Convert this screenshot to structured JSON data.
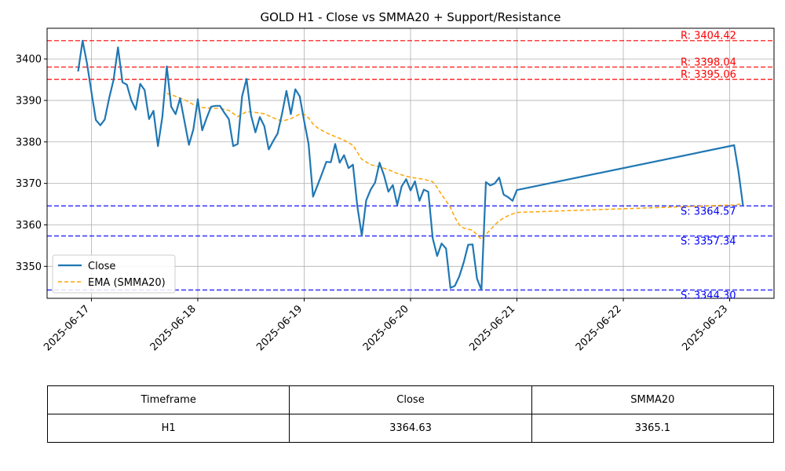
{
  "chart_data": {
    "type": "line",
    "title": "GOLD H1 - Close vs SMMA20 + Support/Resistance",
    "xlabel": "",
    "ylabel": "",
    "x_range": [
      "2025-06-16T14:00",
      "2025-06-23T10:00"
    ],
    "ylim": [
      3342.3,
      3407.4
    ],
    "grid": true,
    "legend_position": "lower-left",
    "x_ticks": [
      "2025-06-17",
      "2025-06-18",
      "2025-06-19",
      "2025-06-20",
      "2025-06-21",
      "2025-06-22",
      "2025-06-23"
    ],
    "y_ticks": [
      3350,
      3360,
      3370,
      3380,
      3390,
      3400
    ],
    "series": [
      {
        "name": "Close",
        "style": "solid",
        "color": "#1f77b4",
        "points": [
          [
            "2025-06-16T21:00",
            3397
          ],
          [
            "2025-06-16T22:00",
            3404.4
          ],
          [
            "2025-06-16T23:00",
            3399
          ],
          [
            "2025-06-17T00:00",
            3392
          ],
          [
            "2025-06-17T01:00",
            3385.3
          ],
          [
            "2025-06-17T02:00",
            3384
          ],
          [
            "2025-06-17T03:00",
            3385.4
          ],
          [
            "2025-06-17T04:00",
            3390.5
          ],
          [
            "2025-06-17T05:00",
            3395
          ],
          [
            "2025-06-17T06:00",
            3402.8
          ],
          [
            "2025-06-17T07:00",
            3394.4
          ],
          [
            "2025-06-17T08:00",
            3393.8
          ],
          [
            "2025-06-17T09:00",
            3390
          ],
          [
            "2025-06-17T10:00",
            3387.8
          ],
          [
            "2025-06-17T11:00",
            3394
          ],
          [
            "2025-06-17T12:00",
            3392.5
          ],
          [
            "2025-06-17T13:00",
            3385.5
          ],
          [
            "2025-06-17T14:00",
            3387.5
          ],
          [
            "2025-06-17T15:00",
            3379
          ],
          [
            "2025-06-17T16:00",
            3386
          ],
          [
            "2025-06-17T17:00",
            3398.2
          ],
          [
            "2025-06-17T18:00",
            3388.5
          ],
          [
            "2025-06-17T19:00",
            3386.7
          ],
          [
            "2025-06-17T20:00",
            3390.5
          ],
          [
            "2025-06-17T21:00",
            3385
          ],
          [
            "2025-06-17T22:00",
            3379.3
          ],
          [
            "2025-06-17T23:00",
            3383
          ],
          [
            "2025-06-18T00:00",
            3390.3
          ],
          [
            "2025-06-18T01:00",
            3382.8
          ],
          [
            "2025-06-18T02:00",
            3385.8
          ],
          [
            "2025-06-18T03:00",
            3388.5
          ],
          [
            "2025-06-18T04:00",
            3388.7
          ],
          [
            "2025-06-18T05:00",
            3388.7
          ],
          [
            "2025-06-18T06:00",
            3387
          ],
          [
            "2025-06-18T07:00",
            3385.5
          ],
          [
            "2025-06-18T08:00",
            3379
          ],
          [
            "2025-06-18T09:00",
            3379.5
          ],
          [
            "2025-06-18T10:00",
            3391
          ],
          [
            "2025-06-18T11:00",
            3395.2
          ],
          [
            "2025-06-18T12:00",
            3386.5
          ],
          [
            "2025-06-18T13:00",
            3382.3
          ],
          [
            "2025-06-18T14:00",
            3386
          ],
          [
            "2025-06-18T15:00",
            3383.8
          ],
          [
            "2025-06-18T16:00",
            3378.2
          ],
          [
            "2025-06-18T17:00",
            3380.2
          ],
          [
            "2025-06-18T18:00",
            3382
          ],
          [
            "2025-06-18T19:00",
            3386.8
          ],
          [
            "2025-06-18T20:00",
            3392.3
          ],
          [
            "2025-06-18T21:00",
            3386.7
          ],
          [
            "2025-06-18T22:00",
            3392.7
          ],
          [
            "2025-06-18T23:00",
            3391
          ],
          [
            "2025-06-19T00:00",
            3385
          ],
          [
            "2025-06-19T01:00",
            3379.5
          ],
          [
            "2025-06-19T02:00",
            3366.8
          ],
          [
            "2025-06-19T03:00",
            3369.5
          ],
          [
            "2025-06-19T04:00",
            3372.3
          ],
          [
            "2025-06-19T05:00",
            3375.2
          ],
          [
            "2025-06-19T06:00",
            3375.1
          ],
          [
            "2025-06-19T07:00",
            3379.5
          ],
          [
            "2025-06-19T08:00",
            3375
          ],
          [
            "2025-06-19T09:00",
            3376.8
          ],
          [
            "2025-06-19T10:00",
            3373.7
          ],
          [
            "2025-06-19T11:00",
            3374.5
          ],
          [
            "2025-06-19T12:00",
            3364.5
          ],
          [
            "2025-06-19T13:00",
            3357.4
          ],
          [
            "2025-06-19T14:00",
            3365.9
          ],
          [
            "2025-06-19T15:00",
            3368.5
          ],
          [
            "2025-06-19T16:00",
            3370.2
          ],
          [
            "2025-06-19T17:00",
            3375
          ],
          [
            "2025-06-19T18:00",
            3372
          ],
          [
            "2025-06-19T19:00",
            3368
          ],
          [
            "2025-06-19T20:00",
            3369.6
          ],
          [
            "2025-06-19T21:00",
            3364.8
          ],
          [
            "2025-06-19T22:00",
            3369.3
          ],
          [
            "2025-06-19T23:00",
            3371
          ],
          [
            "2025-06-20T00:00",
            3368.3
          ],
          [
            "2025-06-20T01:00",
            3370.5
          ],
          [
            "2025-06-20T02:00",
            3365.8
          ],
          [
            "2025-06-20T03:00",
            3368.5
          ],
          [
            "2025-06-20T04:00",
            3368
          ],
          [
            "2025-06-20T05:00",
            3356.8
          ],
          [
            "2025-06-20T06:00",
            3352.5
          ],
          [
            "2025-06-20T07:00",
            3355.5
          ],
          [
            "2025-06-20T08:00",
            3354.3
          ],
          [
            "2025-06-20T09:00",
            3344.8
          ],
          [
            "2025-06-20T10:00",
            3345.3
          ],
          [
            "2025-06-20T11:00",
            3347.6
          ],
          [
            "2025-06-20T12:00",
            3351
          ],
          [
            "2025-06-20T13:00",
            3355.2
          ],
          [
            "2025-06-20T14:00",
            3355.3
          ],
          [
            "2025-06-20T15:00",
            3347
          ],
          [
            "2025-06-20T16:00",
            3344.3
          ],
          [
            "2025-06-20T17:00",
            3370.3
          ],
          [
            "2025-06-20T18:00",
            3369.5
          ],
          [
            "2025-06-20T19:00",
            3370
          ],
          [
            "2025-06-20T20:00",
            3371.4
          ],
          [
            "2025-06-20T21:00",
            3367.3
          ],
          [
            "2025-06-20T22:00",
            3366.7
          ],
          [
            "2025-06-20T23:00",
            3365.8
          ],
          [
            "2025-06-21T00:00",
            3368.4
          ],
          [
            "2025-06-23T01:00",
            3379.2
          ],
          [
            "2025-06-23T02:00",
            3372.8
          ],
          [
            "2025-06-23T03:00",
            3364.63
          ]
        ]
      },
      {
        "name": "EMA (SMMA20)",
        "style": "dashed",
        "color": "#ffa500",
        "points": [
          [
            "2025-06-17T17:00",
            3391.7
          ],
          [
            "2025-06-17T19:00",
            3391
          ],
          [
            "2025-06-17T21:00",
            3390.2
          ],
          [
            "2025-06-17T23:00",
            3389
          ],
          [
            "2025-06-18T01:00",
            3388.3
          ],
          [
            "2025-06-18T03:00",
            3388.1
          ],
          [
            "2025-06-18T05:00",
            3388.1
          ],
          [
            "2025-06-18T07:00",
            3387.6
          ],
          [
            "2025-06-18T09:00",
            3386.1
          ],
          [
            "2025-06-18T11:00",
            3387.3
          ],
          [
            "2025-06-18T13:00",
            3387.1
          ],
          [
            "2025-06-18T15:00",
            3386.8
          ],
          [
            "2025-06-18T17:00",
            3385.8
          ],
          [
            "2025-06-18T19:00",
            3385
          ],
          [
            "2025-06-18T21:00",
            3385.6
          ],
          [
            "2025-06-18T23:00",
            3386.7
          ],
          [
            "2025-06-19T00:00",
            3386.6
          ],
          [
            "2025-06-19T01:00",
            3385.8
          ],
          [
            "2025-06-19T02:00",
            3384.3
          ],
          [
            "2025-06-19T03:00",
            3383.4
          ],
          [
            "2025-06-19T05:00",
            3382.2
          ],
          [
            "2025-06-19T07:00",
            3381.3
          ],
          [
            "2025-06-19T09:00",
            3380.4
          ],
          [
            "2025-06-19T11:00",
            3379.2
          ],
          [
            "2025-06-19T12:00",
            3377.5
          ],
          [
            "2025-06-19T13:00",
            3375.8
          ],
          [
            "2025-06-19T15:00",
            3374.5
          ],
          [
            "2025-06-19T17:00",
            3374
          ],
          [
            "2025-06-19T19:00",
            3373.3
          ],
          [
            "2025-06-19T21:00",
            3372.4
          ],
          [
            "2025-06-19T23:00",
            3371.7
          ],
          [
            "2025-06-20T01:00",
            3371.3
          ],
          [
            "2025-06-20T03:00",
            3371
          ],
          [
            "2025-06-20T05:00",
            3370.4
          ],
          [
            "2025-06-20T06:00",
            3369
          ],
          [
            "2025-06-20T07:00",
            3367.3
          ],
          [
            "2025-06-20T08:00",
            3365.8
          ],
          [
            "2025-06-20T09:00",
            3364.2
          ],
          [
            "2025-06-20T10:00",
            3361.8
          ],
          [
            "2025-06-20T11:00",
            3360
          ],
          [
            "2025-06-20T12:00",
            3359.2
          ],
          [
            "2025-06-20T14:00",
            3358.7
          ],
          [
            "2025-06-20T15:00",
            3357.6
          ],
          [
            "2025-06-20T16:00",
            3356.5
          ],
          [
            "2025-06-20T17:00",
            3357.7
          ],
          [
            "2025-06-20T18:00",
            3358.8
          ],
          [
            "2025-06-20T19:00",
            3360
          ],
          [
            "2025-06-20T20:00",
            3361
          ],
          [
            "2025-06-20T22:00",
            3362.2
          ],
          [
            "2025-06-21T00:00",
            3363
          ],
          [
            "2025-06-23T01:00",
            3364.8
          ],
          [
            "2025-06-23T03:00",
            3365.1
          ]
        ]
      }
    ],
    "resistance": [
      {
        "value": 3404.42,
        "label": "R: 3404.42"
      },
      {
        "value": 3398.04,
        "label": "R: 3398.04"
      },
      {
        "value": 3395.06,
        "label": "R: 3395.06"
      }
    ],
    "support": [
      {
        "value": 3364.57,
        "label": "S: 3364.57"
      },
      {
        "value": 3357.34,
        "label": "S: 3357.34"
      },
      {
        "value": 3344.3,
        "label": "S: 3344.30"
      }
    ],
    "colors": {
      "close": "#1f77b4",
      "ema": "#ffa500",
      "resistance": "#ff0000",
      "support": "#0000ff"
    }
  },
  "table": {
    "headers": [
      "Timeframe",
      "Close",
      "SMMA20"
    ],
    "rows": [
      [
        "H1",
        "3364.63",
        "3365.1"
      ]
    ]
  }
}
